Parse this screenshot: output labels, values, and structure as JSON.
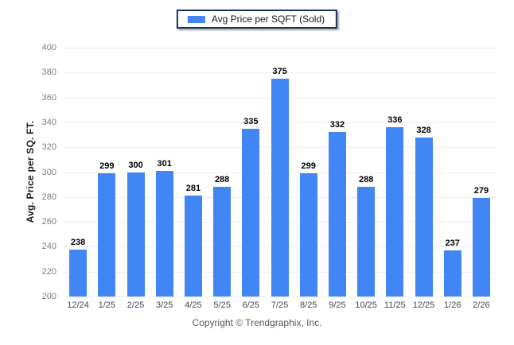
{
  "chart_data": {
    "type": "bar",
    "title": "",
    "legend": "Avg Price per SQFT (Sold)",
    "ylabel": "Avg. Price per SQ. FT.",
    "categories": [
      "12/24",
      "1/25",
      "2/25",
      "3/25",
      "4/25",
      "5/25",
      "6/25",
      "7/25",
      "8/25",
      "9/25",
      "10/25",
      "11/25",
      "12/25",
      "1/26",
      "2/26"
    ],
    "values": [
      238,
      299,
      300,
      301,
      281,
      288,
      335,
      375,
      299,
      332,
      288,
      336,
      328,
      237,
      279
    ],
    "ylim": [
      200,
      400
    ],
    "yticks": [
      400,
      380,
      360,
      340,
      320,
      300,
      280,
      260,
      240,
      220,
      200
    ],
    "grid": true,
    "legend_position": "top-center",
    "bar_color": "#4285f4",
    "gridline_color": "#ededed"
  },
  "footer": {
    "copyright": "Copyright © Trendgraphix, Inc."
  }
}
